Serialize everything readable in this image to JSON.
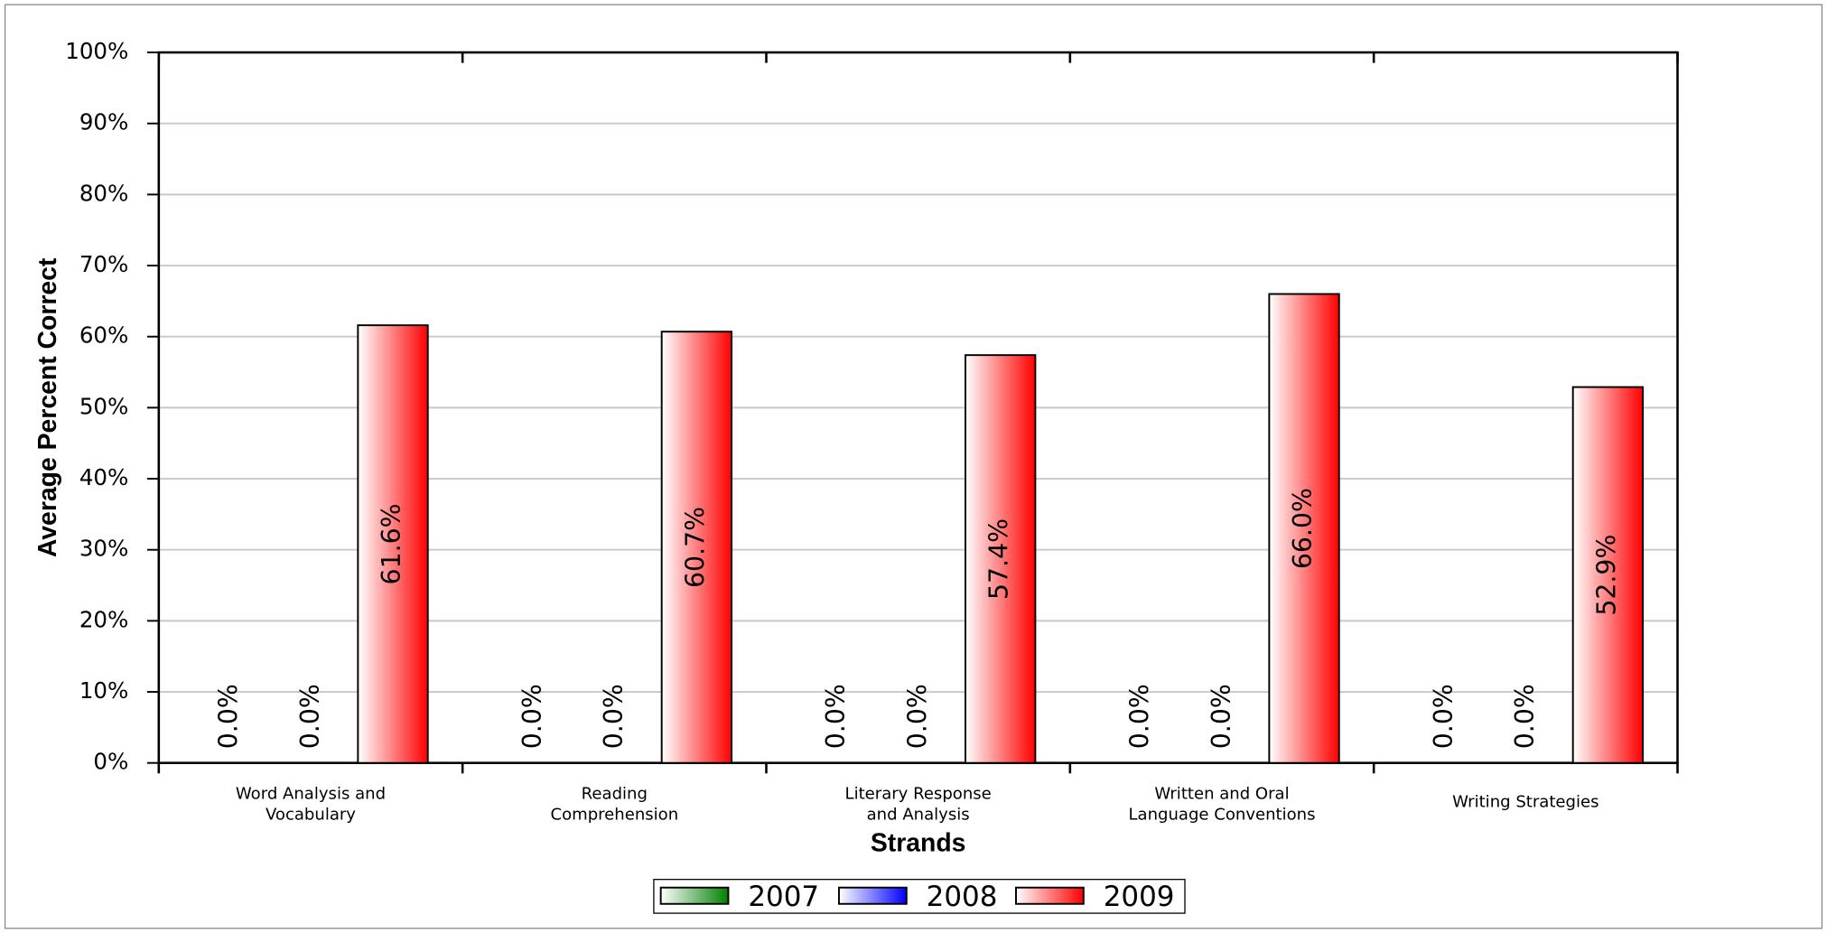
{
  "chart_data": {
    "type": "bar",
    "y_label": "Average Percent Correct",
    "x_label": "Strands",
    "categories": [
      [
        "Word Analysis and",
        "Vocabulary"
      ],
      [
        "Reading",
        "Comprehension"
      ],
      [
        "Literary Response",
        "and Analysis"
      ],
      [
        "Written and Oral",
        "Language Conventions"
      ],
      [
        "Writing Strategies"
      ]
    ],
    "series": [
      {
        "name": "2007",
        "color": "#008000",
        "values": [
          0,
          0,
          0,
          0,
          0
        ],
        "value_labels": [
          "0.0%",
          "0.0%",
          "0.0%",
          "0.0%",
          "0.0%"
        ]
      },
      {
        "name": "2008",
        "color": "#0000ff",
        "values": [
          0,
          0,
          0,
          0,
          0
        ],
        "value_labels": [
          "0.0%",
          "0.0%",
          "0.0%",
          "0.0%",
          "0.0%"
        ]
      },
      {
        "name": "2009",
        "color": "#ff0000",
        "values": [
          61.6,
          60.7,
          57.4,
          66.0,
          52.9
        ],
        "value_labels": [
          "61.6%",
          "60.7%",
          "57.4%",
          "66.0%",
          "52.9%"
        ]
      }
    ],
    "ylim": [
      0,
      100
    ],
    "yticks": [
      {
        "value": 0,
        "label": "0%"
      },
      {
        "value": 10,
        "label": "10%"
      },
      {
        "value": 20,
        "label": "20%"
      },
      {
        "value": 30,
        "label": "30%"
      },
      {
        "value": 40,
        "label": "40%"
      },
      {
        "value": 50,
        "label": "50%"
      },
      {
        "value": 60,
        "label": "60%"
      },
      {
        "value": 70,
        "label": "70%"
      },
      {
        "value": 80,
        "label": "80%"
      },
      {
        "value": 90,
        "label": "90%"
      },
      {
        "value": 100,
        "label": "100%"
      }
    ],
    "grid": true,
    "legend": "bottom"
  }
}
